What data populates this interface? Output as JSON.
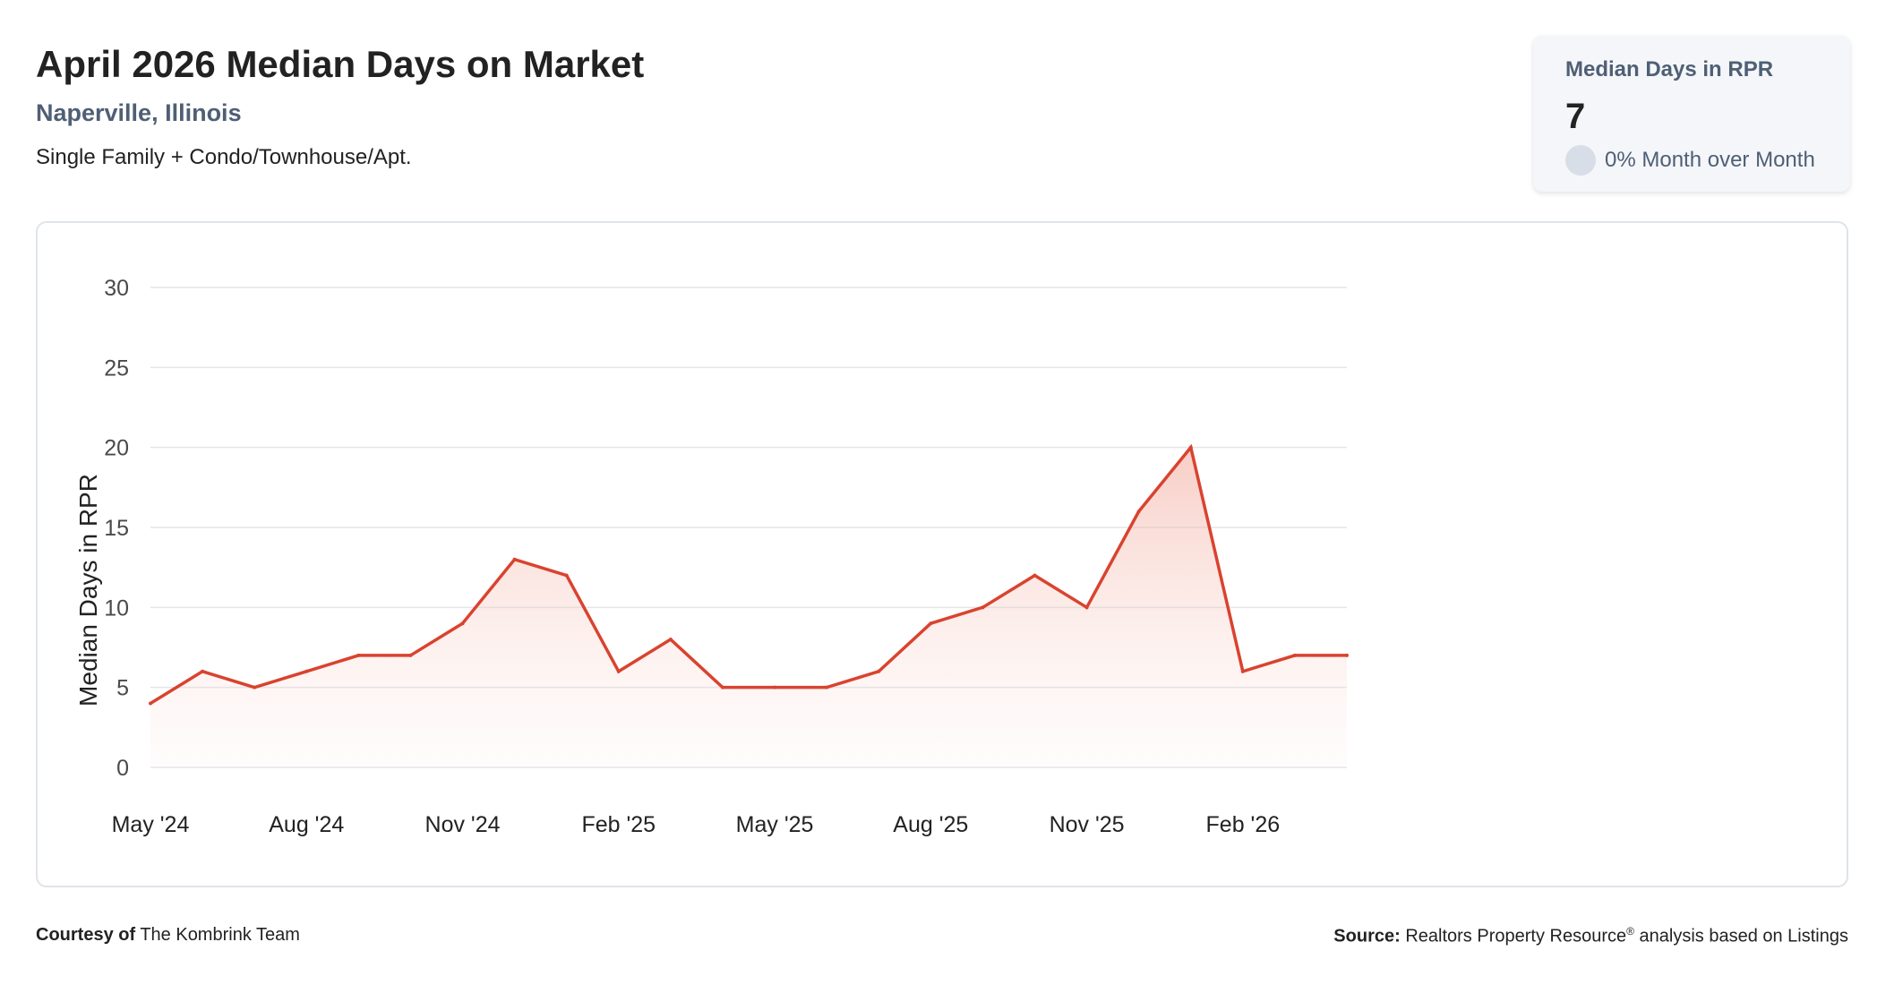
{
  "header": {
    "title": "April 2026 Median Days on Market",
    "location": "Naperville, Illinois",
    "property_types": "Single Family + Condo/Townhouse/Apt."
  },
  "stat_card": {
    "label": "Median Days in RPR",
    "value": "7",
    "change_text": "0% Month over Month"
  },
  "footer": {
    "courtesy_label": "Courtesy of",
    "courtesy_name": "The Kombrink Team",
    "source_label": "Source:",
    "source_text_a": "Realtors Property Resource",
    "source_reg": "®",
    "source_text_b": " analysis based on Listings"
  },
  "colors": {
    "line": "#d9432f",
    "grid": "#e3e6ea",
    "axis_text": "#4a4a4a"
  },
  "chart_data": {
    "type": "area",
    "ylabel": "Median Days in RPR",
    "ylim": [
      0,
      30
    ],
    "y_ticks": [
      0,
      5,
      10,
      15,
      20,
      25,
      30
    ],
    "x_ticks": [
      {
        "label": "May '24",
        "index": 0
      },
      {
        "label": "Aug '24",
        "index": 3
      },
      {
        "label": "Nov '24",
        "index": 6
      },
      {
        "label": "Feb '25",
        "index": 9
      },
      {
        "label": "May '25",
        "index": 12
      },
      {
        "label": "Aug '25",
        "index": 15
      },
      {
        "label": "Nov '25",
        "index": 18
      },
      {
        "label": "Feb '26",
        "index": 21
      }
    ],
    "series": [
      {
        "values": [
          4,
          6,
          5,
          6,
          7,
          7,
          9,
          13,
          12,
          6,
          8,
          5,
          5,
          5,
          6,
          9,
          10,
          12,
          10,
          16,
          20,
          6,
          7,
          7
        ]
      }
    ],
    "grid": true,
    "legend": "none"
  }
}
